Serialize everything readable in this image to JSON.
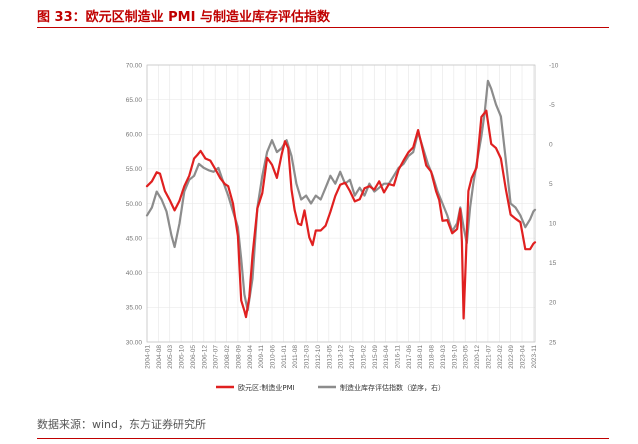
{
  "header": {
    "title": "图 33：欧元区制造业 PMI 与制造业库存评估指数"
  },
  "footer": {
    "source": "数据来源：wind，东方证券研究所"
  },
  "colors": {
    "accent": "#c00000",
    "series_pmi": "#e02020",
    "series_inventory": "#8c8c8c",
    "grid": "#e6e6e6"
  },
  "chart_data": {
    "type": "line",
    "title": "",
    "left_axis": {
      "ylim": [
        30,
        70
      ],
      "ticks": [
        "70.00",
        "65.00",
        "60.00",
        "55.00",
        "50.00",
        "45.00",
        "40.00",
        "35.00",
        "30.00"
      ]
    },
    "right_axis": {
      "ylim": [
        -10,
        25
      ],
      "inverted": true,
      "ticks": [
        "-10",
        "-5",
        "0",
        "5",
        "10",
        "15",
        "20",
        "25"
      ]
    },
    "x_tick_labels": [
      "2004-01",
      "2004-08",
      "2005-03",
      "2005-10",
      "2006-05",
      "2006-12",
      "2007-07",
      "2008-02",
      "2008-09",
      "2009-04",
      "2009-11",
      "2010-06",
      "2011-01",
      "2011-08",
      "2012-03",
      "2012-10",
      "2013-05",
      "2013-12",
      "2014-07",
      "2015-02",
      "2015-09",
      "2016-04",
      "2016-11",
      "2017-06",
      "2018-01",
      "2018-08",
      "2019-03",
      "2019-10",
      "2020-05",
      "2020-12",
      "2021-07",
      "2022-02",
      "2022-09",
      "2023-04",
      "2023-11"
    ],
    "series": [
      {
        "name": "欧元区:制造业PMI",
        "axis": "left",
        "color": "#e02020",
        "points": [
          [
            "2004-01",
            52.5
          ],
          [
            "2004-04",
            53.2
          ],
          [
            "2004-07",
            54.5
          ],
          [
            "2004-09",
            54.3
          ],
          [
            "2004-12",
            51.8
          ],
          [
            "2005-03",
            50.5
          ],
          [
            "2005-06",
            49.0
          ],
          [
            "2005-09",
            50.4
          ],
          [
            "2005-12",
            52.5
          ],
          [
            "2006-03",
            54.0
          ],
          [
            "2006-06",
            56.5
          ],
          [
            "2006-08",
            57.0
          ],
          [
            "2006-10",
            57.6
          ],
          [
            "2007-01",
            56.5
          ],
          [
            "2007-04",
            56.2
          ],
          [
            "2007-07",
            55.0
          ],
          [
            "2007-10",
            53.7
          ],
          [
            "2008-01",
            52.8
          ],
          [
            "2008-03",
            52.5
          ],
          [
            "2008-06",
            50.0
          ],
          [
            "2008-09",
            45.3
          ],
          [
            "2008-11",
            36.0
          ],
          [
            "2009-01",
            34.5
          ],
          [
            "2009-02",
            33.6
          ],
          [
            "2009-04",
            36.5
          ],
          [
            "2009-06",
            42.5
          ],
          [
            "2009-09",
            49.3
          ],
          [
            "2009-12",
            51.5
          ],
          [
            "2010-03",
            56.6
          ],
          [
            "2010-06",
            55.6
          ],
          [
            "2010-09",
            53.7
          ],
          [
            "2010-12",
            57.1
          ],
          [
            "2011-02",
            59.0
          ],
          [
            "2011-04",
            58.0
          ],
          [
            "2011-06",
            52.0
          ],
          [
            "2011-08",
            49.0
          ],
          [
            "2011-10",
            47.1
          ],
          [
            "2011-12",
            46.9
          ],
          [
            "2012-02",
            49.0
          ],
          [
            "2012-05",
            45.1
          ],
          [
            "2012-07",
            44.0
          ],
          [
            "2012-09",
            46.1
          ],
          [
            "2012-12",
            46.1
          ],
          [
            "2013-03",
            46.8
          ],
          [
            "2013-06",
            48.8
          ],
          [
            "2013-09",
            51.1
          ],
          [
            "2013-12",
            52.7
          ],
          [
            "2014-03",
            53.0
          ],
          [
            "2014-06",
            51.8
          ],
          [
            "2014-09",
            50.3
          ],
          [
            "2014-12",
            50.6
          ],
          [
            "2015-03",
            52.2
          ],
          [
            "2015-06",
            52.5
          ],
          [
            "2015-09",
            52.0
          ],
          [
            "2015-12",
            53.2
          ],
          [
            "2016-03",
            51.6
          ],
          [
            "2016-06",
            52.8
          ],
          [
            "2016-09",
            52.6
          ],
          [
            "2016-12",
            54.9
          ],
          [
            "2017-03",
            56.2
          ],
          [
            "2017-06",
            57.4
          ],
          [
            "2017-09",
            58.1
          ],
          [
            "2017-12",
            60.6
          ],
          [
            "2018-02",
            58.6
          ],
          [
            "2018-05",
            55.5
          ],
          [
            "2018-08",
            54.6
          ],
          [
            "2018-11",
            51.8
          ],
          [
            "2019-01",
            50.5
          ],
          [
            "2019-03",
            47.5
          ],
          [
            "2019-06",
            47.6
          ],
          [
            "2019-09",
            45.7
          ],
          [
            "2019-12",
            46.3
          ],
          [
            "2020-02",
            49.2
          ],
          [
            "2020-03",
            44.5
          ],
          [
            "2020-04",
            33.4
          ],
          [
            "2020-05",
            39.4
          ],
          [
            "2020-07",
            51.8
          ],
          [
            "2020-09",
            53.7
          ],
          [
            "2020-12",
            55.2
          ],
          [
            "2021-03",
            62.5
          ],
          [
            "2021-06",
            63.4
          ],
          [
            "2021-09",
            58.6
          ],
          [
            "2021-12",
            58.0
          ],
          [
            "2022-03",
            56.5
          ],
          [
            "2022-06",
            52.1
          ],
          [
            "2022-09",
            48.4
          ],
          [
            "2022-12",
            47.8
          ],
          [
            "2023-03",
            47.3
          ],
          [
            "2023-06",
            43.4
          ],
          [
            "2023-09",
            43.4
          ],
          [
            "2023-11",
            44.2
          ],
          [
            "2023-12",
            44.4
          ]
        ]
      },
      {
        "name": "制造业库存评估指数（逆序，右）",
        "axis": "right",
        "color": "#8c8c8c",
        "points": [
          [
            "2004-01",
            9.0
          ],
          [
            "2004-04",
            8.0
          ],
          [
            "2004-07",
            6.0
          ],
          [
            "2004-10",
            7.0
          ],
          [
            "2005-01",
            8.5
          ],
          [
            "2005-04",
            11.5
          ],
          [
            "2005-06",
            13.0
          ],
          [
            "2005-09",
            10.0
          ],
          [
            "2005-12",
            6.0
          ],
          [
            "2006-03",
            4.5
          ],
          [
            "2006-06",
            4.0
          ],
          [
            "2006-09",
            2.5
          ],
          [
            "2006-12",
            3.0
          ],
          [
            "2007-03",
            3.3
          ],
          [
            "2007-06",
            3.5
          ],
          [
            "2007-09",
            3.0
          ],
          [
            "2007-12",
            4.8
          ],
          [
            "2008-03",
            6.5
          ],
          [
            "2008-06",
            8.5
          ],
          [
            "2008-09",
            10.5
          ],
          [
            "2008-11",
            14.5
          ],
          [
            "2009-01",
            19.0
          ],
          [
            "2009-03",
            21.0
          ],
          [
            "2009-06",
            17.0
          ],
          [
            "2009-09",
            8.0
          ],
          [
            "2009-12",
            4.0
          ],
          [
            "2010-03",
            1.0
          ],
          [
            "2010-06",
            -0.5
          ],
          [
            "2010-09",
            1.0
          ],
          [
            "2010-12",
            0.5
          ],
          [
            "2011-03",
            -0.5
          ],
          [
            "2011-06",
            1.5
          ],
          [
            "2011-09",
            5.0
          ],
          [
            "2011-12",
            7.0
          ],
          [
            "2012-03",
            6.5
          ],
          [
            "2012-06",
            7.5
          ],
          [
            "2012-09",
            6.5
          ],
          [
            "2012-12",
            7.0
          ],
          [
            "2013-03",
            5.5
          ],
          [
            "2013-06",
            4.0
          ],
          [
            "2013-09",
            5.0
          ],
          [
            "2013-12",
            3.5
          ],
          [
            "2014-03",
            5.0
          ],
          [
            "2014-06",
            4.5
          ],
          [
            "2014-09",
            6.5
          ],
          [
            "2014-12",
            5.5
          ],
          [
            "2015-03",
            6.5
          ],
          [
            "2015-06",
            5.0
          ],
          [
            "2015-09",
            6.0
          ],
          [
            "2015-12",
            5.5
          ],
          [
            "2016-03",
            5.0
          ],
          [
            "2016-06",
            5.0
          ],
          [
            "2016-09",
            4.0
          ],
          [
            "2016-12",
            3.0
          ],
          [
            "2017-03",
            2.5
          ],
          [
            "2017-06",
            1.5
          ],
          [
            "2017-09",
            1.0
          ],
          [
            "2017-12",
            -1.5
          ],
          [
            "2018-03",
            0.5
          ],
          [
            "2018-06",
            2.5
          ],
          [
            "2018-09",
            4.0
          ],
          [
            "2018-12",
            6.0
          ],
          [
            "2019-03",
            7.5
          ],
          [
            "2019-06",
            9.0
          ],
          [
            "2019-09",
            11.0
          ],
          [
            "2019-12",
            10.0
          ],
          [
            "2020-02",
            8.0
          ],
          [
            "2020-04",
            10.5
          ],
          [
            "2020-06",
            12.5
          ],
          [
            "2020-08",
            8.0
          ],
          [
            "2020-10",
            5.0
          ],
          [
            "2020-12",
            2.5
          ],
          [
            "2021-03",
            -1.0
          ],
          [
            "2021-05",
            -4.0
          ],
          [
            "2021-07",
            -8.0
          ],
          [
            "2021-09",
            -7.0
          ],
          [
            "2021-12",
            -5.0
          ],
          [
            "2022-03",
            -3.5
          ],
          [
            "2022-06",
            2.0
          ],
          [
            "2022-09",
            7.5
          ],
          [
            "2022-12",
            8.0
          ],
          [
            "2023-03",
            9.0
          ],
          [
            "2023-06",
            10.5
          ],
          [
            "2023-09",
            9.5
          ],
          [
            "2023-11",
            8.5
          ],
          [
            "2023-12",
            8.3
          ]
        ]
      }
    ],
    "legend": {
      "placement": "bottom",
      "entries": [
        "欧元区:制造业PMI",
        "制造业库存评估指数（逆序，右）"
      ]
    }
  }
}
